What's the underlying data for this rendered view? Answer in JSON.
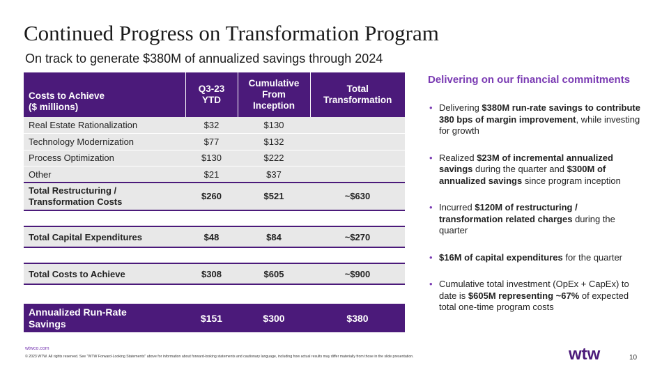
{
  "slide": {
    "title": "Continued Progress on Transformation Program",
    "subtitle": "On track to generate $380M of annualized savings through 2024",
    "page_number": "10"
  },
  "table": {
    "headers": {
      "label_line1": "Costs to Achieve",
      "label_line2": "($ millions)",
      "col1_line1": "Q3-23",
      "col1_line2": "YTD",
      "col2_line1": "Cumulative",
      "col2_line2": "From",
      "col2_line3": "Inception",
      "col3_line1": "Total",
      "col3_line2": "Transformation"
    },
    "rows": [
      {
        "label": "Real Estate Rationalization",
        "q3": "$32",
        "cum": "$130",
        "total": ""
      },
      {
        "label": "Technology Modernization",
        "q3": "$77",
        "cum": "$132",
        "total": ""
      },
      {
        "label": "Process Optimization",
        "q3": "$130",
        "cum": "$222",
        "total": ""
      },
      {
        "label": "Other",
        "q3": "$21",
        "cum": "$37",
        "total": ""
      }
    ],
    "total_restructuring": {
      "label_line1": "Total Restructuring /",
      "label_line2": "Transformation Costs",
      "q3": "$260",
      "cum": "$521",
      "total": "~$630"
    },
    "total_capex": {
      "label": "Total Capital Expenditures",
      "q3": "$48",
      "cum": "$84",
      "total": "~$270"
    },
    "total_cta": {
      "label": "Total Costs to Achieve",
      "q3": "$308",
      "cum": "$605",
      "total": "~$900"
    },
    "savings": {
      "label_line1": "Annualized Run-Rate",
      "label_line2": "Savings",
      "q3": "$151",
      "cum": "$300",
      "total": "$380"
    }
  },
  "commitments": {
    "heading": "Delivering on our financial commitments",
    "bullet_glyph": "•",
    "b1": {
      "t1": "Delivering ",
      "b1": "$380M run-rate savings to contribute 380 bps of margin improvement",
      "t2": ", while investing for growth"
    },
    "b2": {
      "t1": "Realized ",
      "b1": "$23M of incremental annualized savings",
      "t2": " during the quarter and ",
      "b2": "$300M of annualized savings",
      "t3": " since program inception"
    },
    "b3": {
      "t1": "Incurred ",
      "b1": "$120M of restructuring / transformation related charges",
      "t2": " during the quarter"
    },
    "b4": {
      "b1": "$16M of capital expenditures",
      "t1": " for the quarter"
    },
    "b5": {
      "t1": "Cumulative total investment (OpEx + CapEx) to date is ",
      "b1": "$605M representing ~67%",
      "t2": " of expected total one-time program costs"
    }
  },
  "footer": {
    "link": "wtwco.com",
    "copyright": "© 2023 WTW. All rights reserved. See \"WTW Forward-Looking Statements\" above for information about forward-looking statements and cautionary language, including how actual results may differ materially from those in the slide presentation.",
    "logo_text": "wtw",
    "logo_icon": "wtw-logo-icon"
  },
  "colors": {
    "brand_purple": "#4b1a7a",
    "accent_purple": "#7a3bb3",
    "row_gray": "#e8e8e8"
  }
}
